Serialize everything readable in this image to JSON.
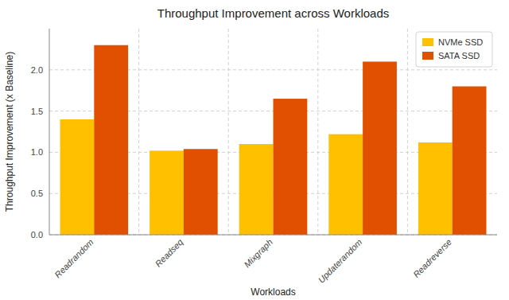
{
  "chart_data": {
    "type": "bar",
    "title": "Throughput Improvement across Workloads",
    "xlabel": "Workloads",
    "ylabel": "Throughput Improvement (x Baseline)",
    "categories": [
      "Readrandom",
      "Readseq",
      "Mixgraph",
      "Updaterandom",
      "Readreverse"
    ],
    "series": [
      {
        "name": "NVMe SSD",
        "color": "#FFC000",
        "values": [
          1.4,
          1.02,
          1.1,
          1.22,
          1.12
        ]
      },
      {
        "name": "SATA SSD",
        "color": "#E05000",
        "values": [
          2.3,
          1.04,
          1.65,
          2.1,
          1.8
        ]
      }
    ],
    "ylim": [
      0,
      2.5
    ],
    "yticks": [
      {
        "value": 0.0,
        "label": "0.0"
      },
      0.5,
      {
        "value": 1.0,
        "label": "1.0"
      },
      1.5,
      {
        "value": 2.0,
        "label": "2.0"
      }
    ],
    "grid": true,
    "legend": "upper right"
  }
}
